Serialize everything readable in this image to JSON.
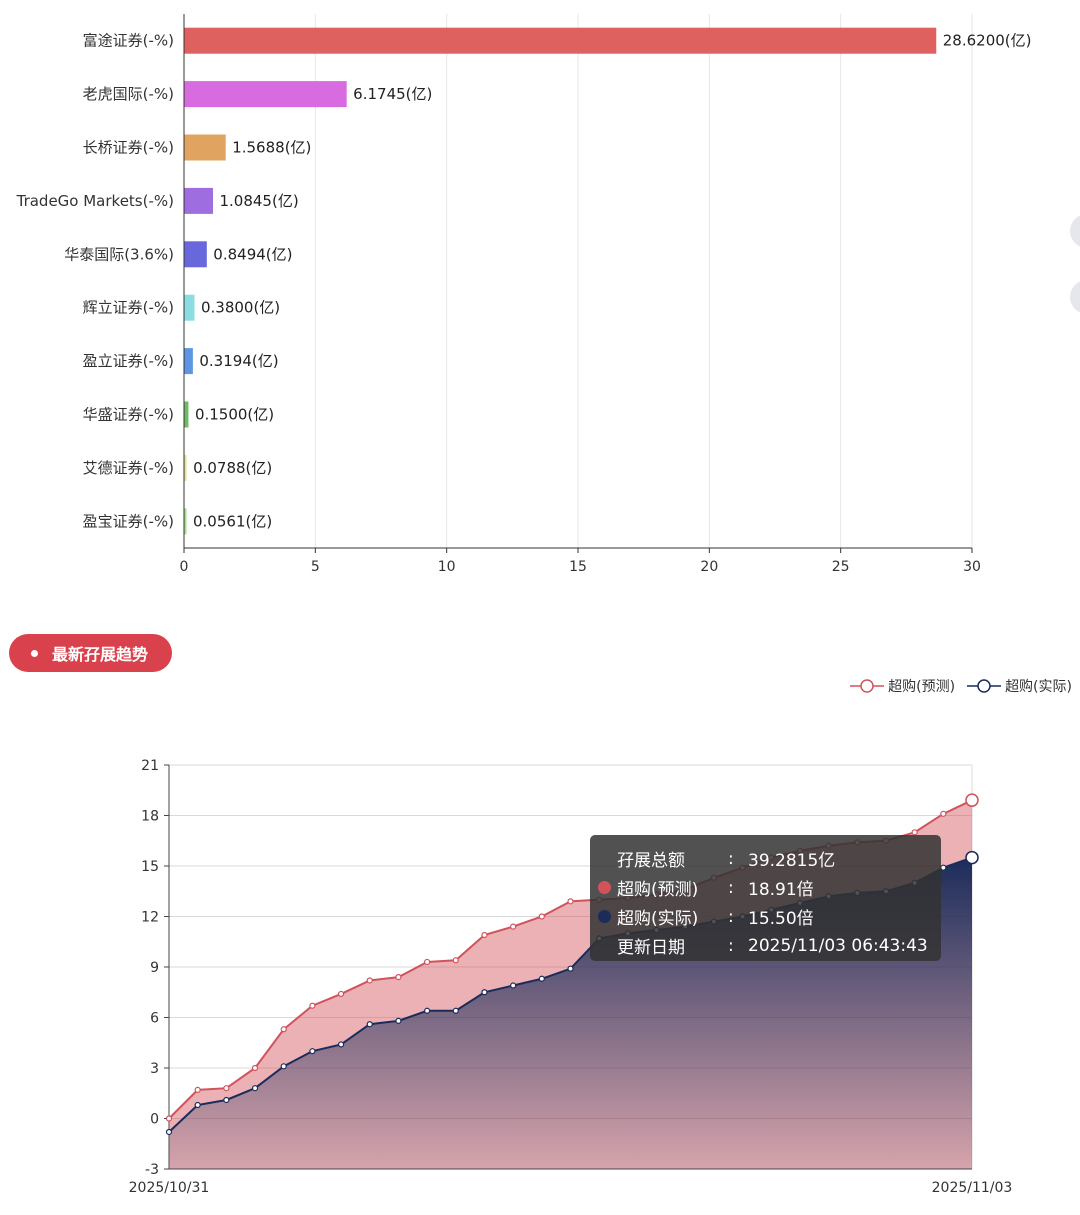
{
  "chart_data": [
    {
      "type": "bar",
      "orientation": "horizontal",
      "categories": [
        "富途证券(-%)",
        "老虎国际(-%)",
        "长桥证券(-%)",
        "TradeGo Markets(-%)",
        "华泰国际(3.6%)",
        "辉立证券(-%)",
        "盈立证券(-%)",
        "华盛证券(-%)",
        "艾德证券(-%)",
        "盈宝证券(-%)"
      ],
      "values": [
        28.62,
        6.1745,
        1.5688,
        1.0845,
        0.8494,
        0.38,
        0.3194,
        0.15,
        0.0788,
        0.0561
      ],
      "value_labels": [
        "28.6200(亿)",
        "6.1745(亿)",
        "1.5688(亿)",
        "1.0845(亿)",
        "0.8494(亿)",
        "0.3800(亿)",
        "0.3194(亿)",
        "0.1500(亿)",
        "0.0788(亿)",
        "0.0561(亿)"
      ],
      "colors": [
        "#de615f",
        "#d76bdf",
        "#e1a360",
        "#9e6de0",
        "#6868dc",
        "#8cdde3",
        "#5e96e2",
        "#6cbc64",
        "#e6e39a",
        "#a6e08d"
      ],
      "xlim": [
        0,
        30
      ],
      "xticks": [
        "0",
        "5",
        "10",
        "15",
        "20",
        "25",
        "30"
      ],
      "grid": "vertical"
    },
    {
      "type": "area",
      "series": [
        {
          "name": "超购(预测)",
          "color": "#d2525b",
          "values": [
            0,
            1.7,
            1.8,
            3.0,
            5.3,
            6.7,
            7.4,
            8.2,
            8.4,
            9.3,
            9.4,
            10.9,
            11.4,
            12.0,
            12.9,
            13.0,
            13.1,
            13.3,
            13.6,
            14.3,
            14.9,
            15.5,
            15.9,
            16.2,
            16.4,
            16.5,
            17.0,
            18.1,
            18.91
          ]
        },
        {
          "name": "超购(实际)",
          "color": "#1b2c5a",
          "values": [
            -0.8,
            0.8,
            1.1,
            1.8,
            3.1,
            4.0,
            4.4,
            5.6,
            5.8,
            6.4,
            6.4,
            7.5,
            7.9,
            8.3,
            8.9,
            10.7,
            11.0,
            11.2,
            11.4,
            11.7,
            12.0,
            12.4,
            12.8,
            13.2,
            13.4,
            13.5,
            14.0,
            14.9,
            15.5
          ]
        }
      ],
      "ylim": [
        -3,
        21
      ],
      "yticks": [
        "-3",
        "0",
        "3",
        "6",
        "9",
        "12",
        "15",
        "18",
        "21"
      ],
      "x_labels": [
        "2025/10/31",
        "2025/11/03"
      ],
      "grid": "horizontal",
      "legend_position": "top-right"
    }
  ],
  "section": {
    "title": "最新孖展趋势"
  },
  "tooltip": {
    "total_label": "孖展总额",
    "total_value": "39.2815亿",
    "forecast_label": "超购(预测)",
    "forecast_value": "18.91倍",
    "actual_label": "超购(实际)",
    "actual_value": "15.50倍",
    "date_label": "更新日期",
    "date_value": "2025/11/03 06:43:43",
    "colon": ":"
  }
}
